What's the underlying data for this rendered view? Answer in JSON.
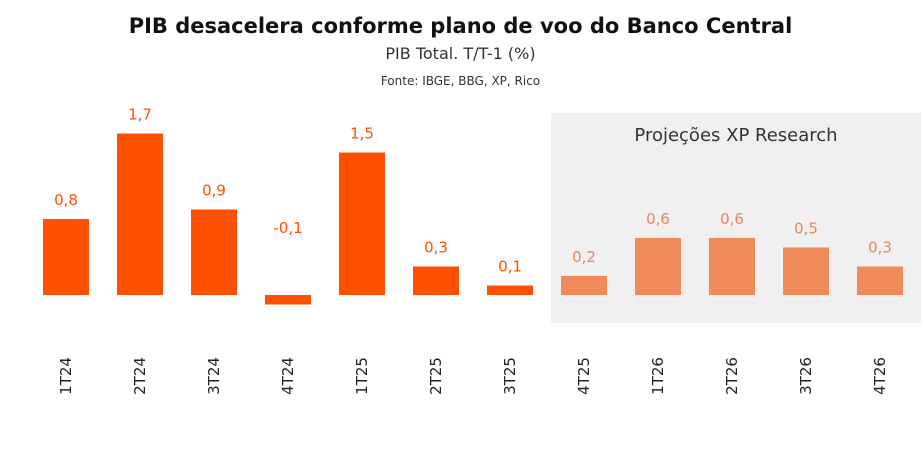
{
  "chart_data": {
    "type": "bar",
    "title": "PIB desacelera conforme plano de voo do Banco Central",
    "subtitle": "PIB Total. T/T-1 (%)",
    "source": "Fonte: IBGE, BBG, XP, Rico",
    "projection_label": "Projeções XP Research",
    "categories": [
      "1T24",
      "2T24",
      "3T24",
      "4T24",
      "1T25",
      "2T25",
      "3T25",
      "4T25",
      "1T26",
      "2T26",
      "3T26",
      "4T26"
    ],
    "values": [
      0.8,
      1.7,
      0.9,
      -0.1,
      1.5,
      0.3,
      0.1,
      0.2,
      0.6,
      0.6,
      0.5,
      0.3
    ],
    "value_labels": [
      "0,8",
      "1,7",
      "0,9",
      "-0,1",
      "1,5",
      "0,3",
      "0,1",
      "0,2",
      "0,6",
      "0,6",
      "0,5",
      "0,3"
    ],
    "projected_from_index": 7,
    "grid": false,
    "colors": {
      "actual": "#ff5000",
      "projected": "#f08a5a",
      "actual_label": "#ff5000",
      "projected_label": "#e8875a",
      "projection_bg": "#f0f0f0"
    }
  }
}
